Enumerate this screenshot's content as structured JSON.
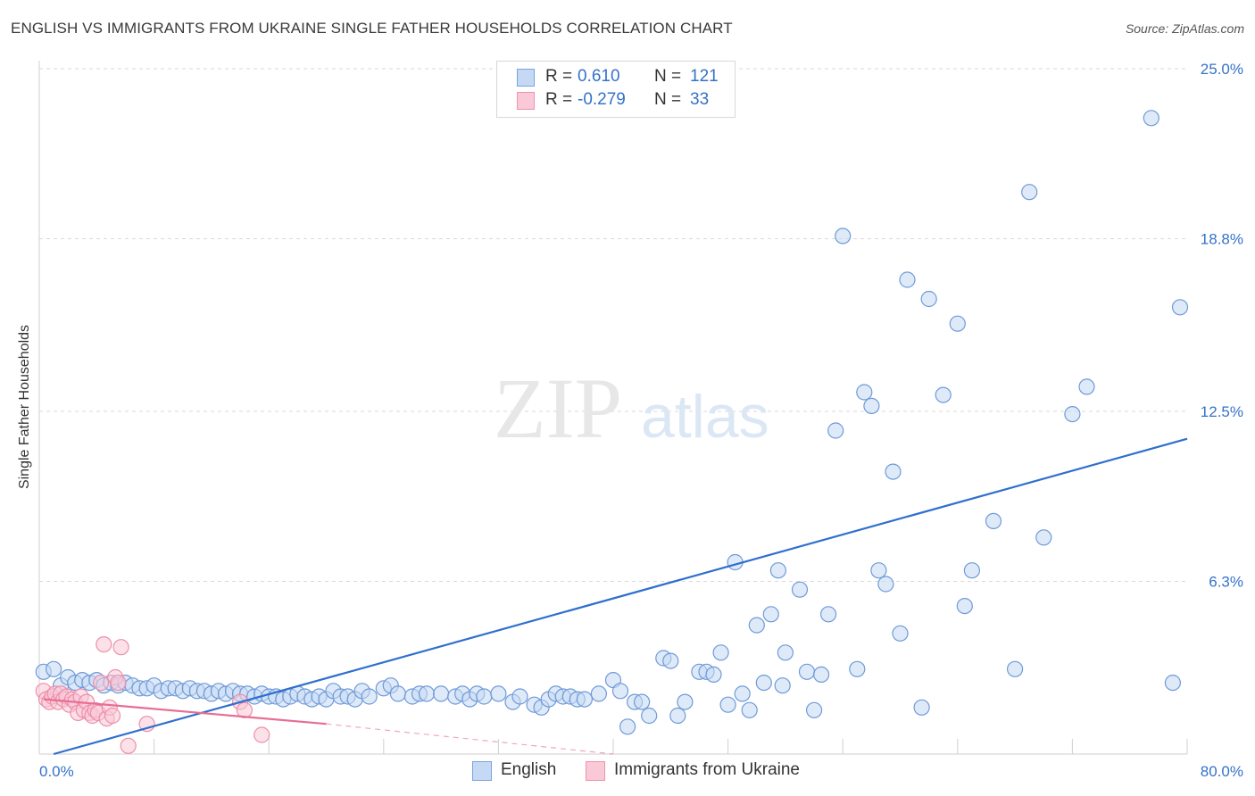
{
  "title": "ENGLISH VS IMMIGRANTS FROM UKRAINE SINGLE FATHER HOUSEHOLDS CORRELATION CHART",
  "source": "Source: ZipAtlas.com",
  "watermark": {
    "zip": "ZIP",
    "atlas": "atlas"
  },
  "legend": {
    "rows": [
      {
        "r_label": "R =",
        "r_value": "0.610",
        "n_label": "N =",
        "n_value": "121"
      },
      {
        "r_label": "R =",
        "r_value": "-0.279",
        "n_label": "N =",
        "n_value": "33"
      }
    ]
  },
  "bottom_legend": {
    "english": "English",
    "ukraine": "Immigrants from Ukraine"
  },
  "colors": {
    "english_fill": "#c5d9f4",
    "english_stroke": "#6f9ad8",
    "english_line": "#2f6fcd",
    "ukraine_fill": "#f9c9d7",
    "ukraine_stroke": "#ec8fab",
    "ukraine_line": "#e86d93",
    "axis_text": "#3572c9",
    "grid": "#d9d9d9"
  },
  "chart_data": {
    "type": "scatter",
    "title": "ENGLISH VS IMMIGRANTS FROM UKRAINE SINGLE FATHER HOUSEHOLDS CORRELATION CHART",
    "xlabel": "",
    "ylabel": "Single Father Households",
    "xlim": [
      0,
      80
    ],
    "ylim": [
      0,
      25.0
    ],
    "x_tick_labels": [
      "0.0%",
      "80.0%"
    ],
    "y_ticks": [
      6.3,
      12.5,
      18.8,
      25.0
    ],
    "y_tick_labels": [
      "6.3%",
      "12.5%",
      "18.8%",
      "25.0%"
    ],
    "grid": true,
    "series": [
      {
        "name": "English",
        "r": 0.61,
        "n": 121,
        "trend": {
          "x": [
            1.0,
            80.0
          ],
          "y": [
            0.0,
            11.5
          ]
        },
        "points": [
          [
            0.3,
            3.0
          ],
          [
            1.0,
            3.1
          ],
          [
            1.5,
            2.5
          ],
          [
            2.0,
            2.8
          ],
          [
            2.5,
            2.6
          ],
          [
            3.0,
            2.7
          ],
          [
            3.5,
            2.6
          ],
          [
            4.0,
            2.7
          ],
          [
            4.5,
            2.5
          ],
          [
            5.0,
            2.6
          ],
          [
            5.5,
            2.5
          ],
          [
            6.0,
            2.6
          ],
          [
            6.5,
            2.5
          ],
          [
            7.0,
            2.4
          ],
          [
            7.5,
            2.4
          ],
          [
            8.0,
            2.5
          ],
          [
            8.5,
            2.3
          ],
          [
            9.0,
            2.4
          ],
          [
            9.5,
            2.4
          ],
          [
            10.0,
            2.3
          ],
          [
            10.5,
            2.4
          ],
          [
            11.0,
            2.3
          ],
          [
            11.5,
            2.3
          ],
          [
            12.0,
            2.2
          ],
          [
            12.5,
            2.3
          ],
          [
            13.0,
            2.2
          ],
          [
            13.5,
            2.3
          ],
          [
            14.0,
            2.2
          ],
          [
            14.5,
            2.2
          ],
          [
            15.0,
            2.1
          ],
          [
            15.5,
            2.2
          ],
          [
            16.0,
            2.1
          ],
          [
            16.5,
            2.1
          ],
          [
            17.0,
            2.0
          ],
          [
            17.5,
            2.1
          ],
          [
            18.0,
            2.2
          ],
          [
            18.5,
            2.1
          ],
          [
            19.0,
            2.0
          ],
          [
            19.5,
            2.1
          ],
          [
            20.0,
            2.0
          ],
          [
            20.5,
            2.3
          ],
          [
            21.0,
            2.1
          ],
          [
            21.5,
            2.1
          ],
          [
            22.0,
            2.0
          ],
          [
            22.5,
            2.3
          ],
          [
            23.0,
            2.1
          ],
          [
            24.0,
            2.4
          ],
          [
            24.5,
            2.5
          ],
          [
            25.0,
            2.2
          ],
          [
            26.0,
            2.1
          ],
          [
            26.5,
            2.2
          ],
          [
            27.0,
            2.2
          ],
          [
            28.0,
            2.2
          ],
          [
            29.0,
            2.1
          ],
          [
            29.5,
            2.2
          ],
          [
            30.0,
            2.0
          ],
          [
            30.5,
            2.2
          ],
          [
            31.0,
            2.1
          ],
          [
            32.0,
            2.2
          ],
          [
            33.0,
            1.9
          ],
          [
            33.5,
            2.1
          ],
          [
            34.5,
            1.8
          ],
          [
            35.0,
            1.7
          ],
          [
            35.5,
            2.0
          ],
          [
            36.0,
            2.2
          ],
          [
            36.5,
            2.1
          ],
          [
            37.0,
            2.1
          ],
          [
            37.5,
            2.0
          ],
          [
            38.0,
            2.0
          ],
          [
            39.0,
            2.2
          ],
          [
            40.0,
            2.7
          ],
          [
            40.5,
            2.3
          ],
          [
            41.0,
            1.0
          ],
          [
            41.5,
            1.9
          ],
          [
            42.0,
            1.9
          ],
          [
            42.5,
            1.4
          ],
          [
            43.5,
            3.5
          ],
          [
            44.0,
            3.4
          ],
          [
            44.5,
            1.4
          ],
          [
            45.0,
            1.9
          ],
          [
            46.0,
            3.0
          ],
          [
            46.5,
            3.0
          ],
          [
            47.0,
            2.9
          ],
          [
            47.5,
            3.7
          ],
          [
            48.0,
            1.8
          ],
          [
            48.5,
            7.0
          ],
          [
            49.0,
            2.2
          ],
          [
            49.5,
            1.6
          ],
          [
            50.0,
            4.7
          ],
          [
            50.5,
            2.6
          ],
          [
            51.0,
            5.1
          ],
          [
            51.5,
            6.7
          ],
          [
            51.8,
            2.5
          ],
          [
            52.0,
            3.7
          ],
          [
            53.0,
            6.0
          ],
          [
            53.5,
            3.0
          ],
          [
            54.0,
            1.6
          ],
          [
            54.5,
            2.9
          ],
          [
            55.0,
            5.1
          ],
          [
            55.5,
            11.8
          ],
          [
            56.0,
            18.9
          ],
          [
            57.0,
            3.1
          ],
          [
            57.5,
            13.2
          ],
          [
            58.0,
            12.7
          ],
          [
            58.5,
            6.7
          ],
          [
            59.0,
            6.2
          ],
          [
            59.5,
            10.3
          ],
          [
            60.0,
            4.4
          ],
          [
            60.5,
            17.3
          ],
          [
            61.5,
            1.7
          ],
          [
            62.0,
            16.6
          ],
          [
            63.0,
            13.1
          ],
          [
            64.0,
            15.7
          ],
          [
            64.5,
            5.4
          ],
          [
            65.0,
            6.7
          ],
          [
            66.5,
            8.5
          ],
          [
            68.0,
            3.1
          ],
          [
            69.0,
            20.5
          ],
          [
            70.0,
            7.9
          ],
          [
            72.0,
            12.4
          ],
          [
            73.0,
            13.4
          ],
          [
            77.5,
            23.2
          ],
          [
            79.0,
            2.6
          ],
          [
            79.5,
            16.3
          ]
        ]
      },
      {
        "name": "Immigrants from Ukraine",
        "r": -0.279,
        "n": 33,
        "trend": {
          "x": [
            0.3,
            20.0
          ],
          "y": [
            2.0,
            1.1
          ]
        },
        "trend_dashed": {
          "x": [
            20.0,
            40.0
          ],
          "y": [
            1.1,
            0.0
          ]
        },
        "points": [
          [
            0.3,
            2.3
          ],
          [
            0.5,
            2.0
          ],
          [
            0.7,
            1.9
          ],
          [
            0.9,
            2.1
          ],
          [
            1.1,
            2.2
          ],
          [
            1.3,
            1.9
          ],
          [
            1.5,
            2.2
          ],
          [
            1.7,
            2.0
          ],
          [
            1.9,
            2.1
          ],
          [
            2.1,
            1.8
          ],
          [
            2.3,
            2.0
          ],
          [
            2.5,
            1.9
          ],
          [
            2.7,
            1.5
          ],
          [
            2.9,
            2.1
          ],
          [
            3.1,
            1.6
          ],
          [
            3.3,
            1.9
          ],
          [
            3.5,
            1.5
          ],
          [
            3.7,
            1.4
          ],
          [
            3.9,
            1.6
          ],
          [
            4.1,
            1.5
          ],
          [
            4.3,
            2.6
          ],
          [
            4.5,
            4.0
          ],
          [
            4.7,
            1.3
          ],
          [
            4.9,
            1.7
          ],
          [
            5.1,
            1.4
          ],
          [
            5.3,
            2.8
          ],
          [
            5.5,
            2.6
          ],
          [
            5.7,
            3.9
          ],
          [
            6.2,
            0.3
          ],
          [
            7.5,
            1.1
          ],
          [
            14.0,
            1.9
          ],
          [
            14.3,
            1.6
          ],
          [
            15.5,
            0.7
          ]
        ]
      }
    ]
  }
}
